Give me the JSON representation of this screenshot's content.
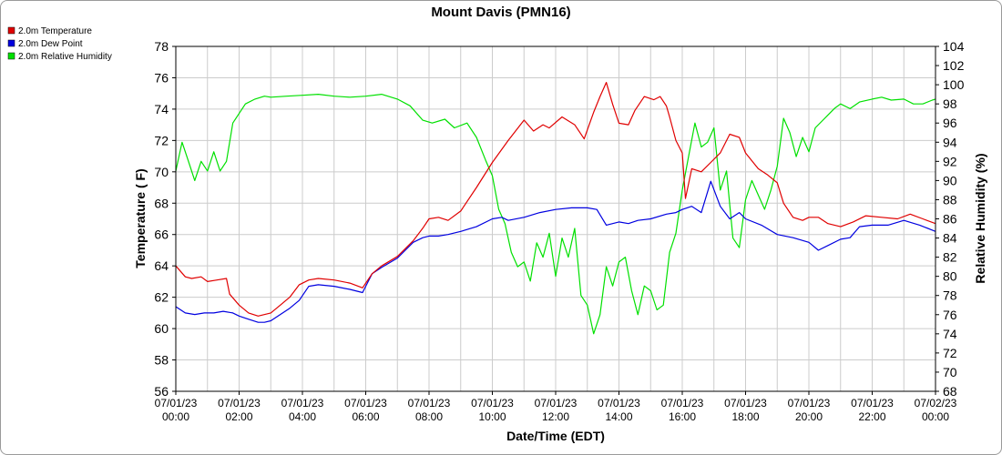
{
  "chart_data": {
    "type": "line",
    "title": "Mount Davis (PMN16)",
    "xlabel": "Date/Time (EDT)",
    "ylabel": "Temperature ( F)",
    "y2label": "Relative Humidity (%)",
    "ylim": [
      56,
      78
    ],
    "y2lim": [
      68,
      104
    ],
    "yticks": [
      "56",
      "58",
      "60",
      "62",
      "64",
      "66",
      "68",
      "70",
      "72",
      "74",
      "76",
      "78"
    ],
    "y2ticks": [
      "68",
      "70",
      "72",
      "74",
      "76",
      "78",
      "80",
      "82",
      "84",
      "86",
      "88",
      "90",
      "92",
      "94",
      "96",
      "98",
      "100",
      "102",
      "104"
    ],
    "xticks": [
      {
        "date": "07/01/23",
        "time": "00:00"
      },
      {
        "date": "07/01/23",
        "time": "02:00"
      },
      {
        "date": "07/01/23",
        "time": "04:00"
      },
      {
        "date": "07/01/23",
        "time": "06:00"
      },
      {
        "date": "07/01/23",
        "time": "08:00"
      },
      {
        "date": "07/01/23",
        "time": "10:00"
      },
      {
        "date": "07/01/23",
        "time": "12:00"
      },
      {
        "date": "07/01/23",
        "time": "14:00"
      },
      {
        "date": "07/01/23",
        "time": "16:00"
      },
      {
        "date": "07/01/23",
        "time": "18:00"
      },
      {
        "date": "07/01/23",
        "time": "20:00"
      },
      {
        "date": "07/01/23",
        "time": "22:00"
      },
      {
        "date": "07/02/23",
        "time": "00:00"
      }
    ],
    "xlim_hours": [
      0,
      24
    ],
    "grid": true,
    "legend_position": "top-left",
    "series": [
      {
        "name": "2.0m Temperature",
        "color": "#e00000",
        "axis": "left",
        "x": [
          0,
          0.3,
          0.5,
          0.8,
          1.0,
          1.3,
          1.6,
          1.7,
          2.0,
          2.3,
          2.6,
          3.0,
          3.3,
          3.6,
          3.9,
          4.2,
          4.5,
          5.0,
          5.5,
          5.9,
          6.2,
          6.5,
          7.0,
          7.5,
          7.8,
          8.0,
          8.3,
          8.6,
          9.0,
          9.5,
          10.0,
          10.5,
          11.0,
          11.3,
          11.6,
          11.8,
          12.2,
          12.6,
          12.9,
          13.2,
          13.4,
          13.6,
          13.8,
          14.0,
          14.3,
          14.5,
          14.8,
          15.1,
          15.3,
          15.5,
          15.6,
          15.8,
          16.0,
          16.1,
          16.3,
          16.6,
          16.9,
          17.2,
          17.5,
          17.8,
          18.0,
          18.4,
          18.7,
          19.0,
          19.2,
          19.5,
          19.8,
          20.0,
          20.3,
          20.6,
          21.0,
          21.4,
          21.8,
          22.3,
          22.8,
          23.2,
          23.6,
          24.0
        ],
        "values": [
          64.0,
          63.3,
          63.2,
          63.3,
          63.0,
          63.1,
          63.2,
          62.2,
          61.5,
          61.0,
          60.8,
          61.0,
          61.5,
          62.0,
          62.8,
          63.1,
          63.2,
          63.1,
          62.9,
          62.6,
          63.5,
          64.0,
          64.6,
          65.6,
          66.4,
          67.0,
          67.1,
          66.9,
          67.5,
          69.0,
          70.6,
          72.0,
          73.3,
          72.6,
          73.0,
          72.8,
          73.5,
          73.0,
          72.1,
          73.8,
          74.8,
          75.7,
          74.3,
          73.1,
          73.0,
          73.9,
          74.8,
          74.6,
          74.8,
          74.2,
          73.5,
          72.0,
          71.2,
          68.3,
          70.2,
          70.0,
          70.6,
          71.2,
          72.4,
          72.2,
          71.2,
          70.2,
          69.8,
          69.3,
          68.0,
          67.1,
          66.9,
          67.1,
          67.1,
          66.7,
          66.5,
          66.8,
          67.2,
          67.1,
          67.0,
          67.3,
          67.0,
          66.7
        ]
      },
      {
        "name": "2.0m Dew Point",
        "color": "#0000e0",
        "axis": "left",
        "x": [
          0,
          0.3,
          0.6,
          0.9,
          1.2,
          1.5,
          1.8,
          2.0,
          2.3,
          2.6,
          2.8,
          3.0,
          3.3,
          3.6,
          3.9,
          4.2,
          4.5,
          5.0,
          5.5,
          5.9,
          6.2,
          6.5,
          7.0,
          7.5,
          7.8,
          8.0,
          8.3,
          8.6,
          9.0,
          9.5,
          10.0,
          10.3,
          10.5,
          11.0,
          11.5,
          12.0,
          12.5,
          13.0,
          13.3,
          13.6,
          14.0,
          14.3,
          14.6,
          15.0,
          15.5,
          15.8,
          16.0,
          16.3,
          16.6,
          16.9,
          17.2,
          17.5,
          17.8,
          18.0,
          18.5,
          19.0,
          19.5,
          20.0,
          20.3,
          20.6,
          21.0,
          21.3,
          21.6,
          22.0,
          22.5,
          23.0,
          23.5,
          24.0
        ],
        "values": [
          61.4,
          61.0,
          60.9,
          61.0,
          61.0,
          61.1,
          61.0,
          60.8,
          60.6,
          60.4,
          60.4,
          60.5,
          60.9,
          61.3,
          61.8,
          62.7,
          62.8,
          62.7,
          62.5,
          62.3,
          63.5,
          63.9,
          64.5,
          65.5,
          65.8,
          65.9,
          65.9,
          66.0,
          66.2,
          66.5,
          67.0,
          67.1,
          66.9,
          67.1,
          67.4,
          67.6,
          67.7,
          67.7,
          67.6,
          66.6,
          66.8,
          66.7,
          66.9,
          67.0,
          67.3,
          67.4,
          67.6,
          67.8,
          67.4,
          69.4,
          67.8,
          67.0,
          67.4,
          67.0,
          66.6,
          66.0,
          65.8,
          65.5,
          65.0,
          65.3,
          65.7,
          65.8,
          66.5,
          66.6,
          66.6,
          66.9,
          66.6,
          66.2
        ]
      },
      {
        "name": "2.0m Relative Humidity",
        "color": "#00e000",
        "axis": "right",
        "x": [
          0,
          0.2,
          0.4,
          0.6,
          0.8,
          1.0,
          1.2,
          1.4,
          1.6,
          1.8,
          2.0,
          2.2,
          2.5,
          2.8,
          3.0,
          3.5,
          4.0,
          4.5,
          5.0,
          5.5,
          6.0,
          6.5,
          7.0,
          7.4,
          7.8,
          8.1,
          8.5,
          8.8,
          9.2,
          9.5,
          9.8,
          10.0,
          10.2,
          10.4,
          10.6,
          10.8,
          11.0,
          11.2,
          11.4,
          11.6,
          11.8,
          12.0,
          12.2,
          12.4,
          12.6,
          12.8,
          13.0,
          13.2,
          13.4,
          13.6,
          13.8,
          14.0,
          14.2,
          14.4,
          14.6,
          14.8,
          15.0,
          15.2,
          15.4,
          15.6,
          15.8,
          16.0,
          16.2,
          16.4,
          16.6,
          16.8,
          17.0,
          17.2,
          17.4,
          17.6,
          17.8,
          18.0,
          18.2,
          18.4,
          18.6,
          18.8,
          19.0,
          19.2,
          19.4,
          19.6,
          19.8,
          20.0,
          20.2,
          20.5,
          20.8,
          21.0,
          21.3,
          21.6,
          22.0,
          22.3,
          22.6,
          23.0,
          23.3,
          23.6,
          23.9,
          24.0
        ],
        "values": [
          91,
          94,
          92,
          90,
          92,
          91,
          93,
          91,
          92,
          96,
          97,
          98,
          98.5,
          98.8,
          98.7,
          98.8,
          98.9,
          99.0,
          98.8,
          98.7,
          98.8,
          99.0,
          98.5,
          97.8,
          96.3,
          96.0,
          96.4,
          95.5,
          96.0,
          94.5,
          92.0,
          90.5,
          87.0,
          85.5,
          82.5,
          81.0,
          81.5,
          79.5,
          83.5,
          82.0,
          84.5,
          80.0,
          84.0,
          82.0,
          85.0,
          78.0,
          77.0,
          74.0,
          76.0,
          81.0,
          79.0,
          81.5,
          82.0,
          78.5,
          76.0,
          79.0,
          78.5,
          76.5,
          77.0,
          82.5,
          84.5,
          89.0,
          92.5,
          96.0,
          93.5,
          94.0,
          95.5,
          89.0,
          91.0,
          84.0,
          83.0,
          88.0,
          90.0,
          88.5,
          87.0,
          89.0,
          91.5,
          96.5,
          95.0,
          92.5,
          94.5,
          93.0,
          95.5,
          96.5,
          97.5,
          98.0,
          97.5,
          98.2,
          98.5,
          98.7,
          98.4,
          98.5,
          98.0,
          98.0,
          98.4,
          98.5
        ]
      }
    ]
  }
}
